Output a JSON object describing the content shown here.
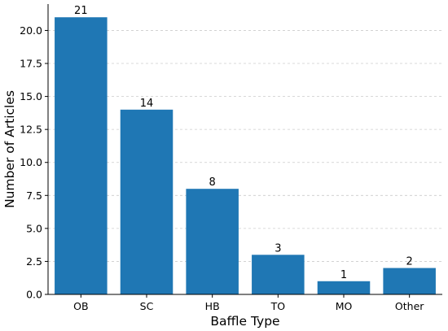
{
  "chart_data": {
    "type": "bar",
    "categories": [
      "OB",
      "SC",
      "HB",
      "TO",
      "MO",
      "Other"
    ],
    "values": [
      21,
      14,
      8,
      3,
      1,
      2
    ],
    "data_labels": [
      "21",
      "14",
      "8",
      "3",
      "1",
      "2"
    ],
    "xlabel": "Baffle Type",
    "ylabel": "Number of Articles",
    "ylim": [
      0,
      22
    ],
    "yticks": [
      0,
      2.5,
      5,
      7.5,
      10,
      12.5,
      15,
      17.5,
      20
    ],
    "ytick_labels": [
      "0.0",
      "2.5",
      "5.0",
      "7.5",
      "10.0",
      "12.5",
      "15.0",
      "17.5",
      "20.0"
    ],
    "bar_color": "#1f77b4",
    "grid": "y-dashed",
    "legend": "none"
  }
}
